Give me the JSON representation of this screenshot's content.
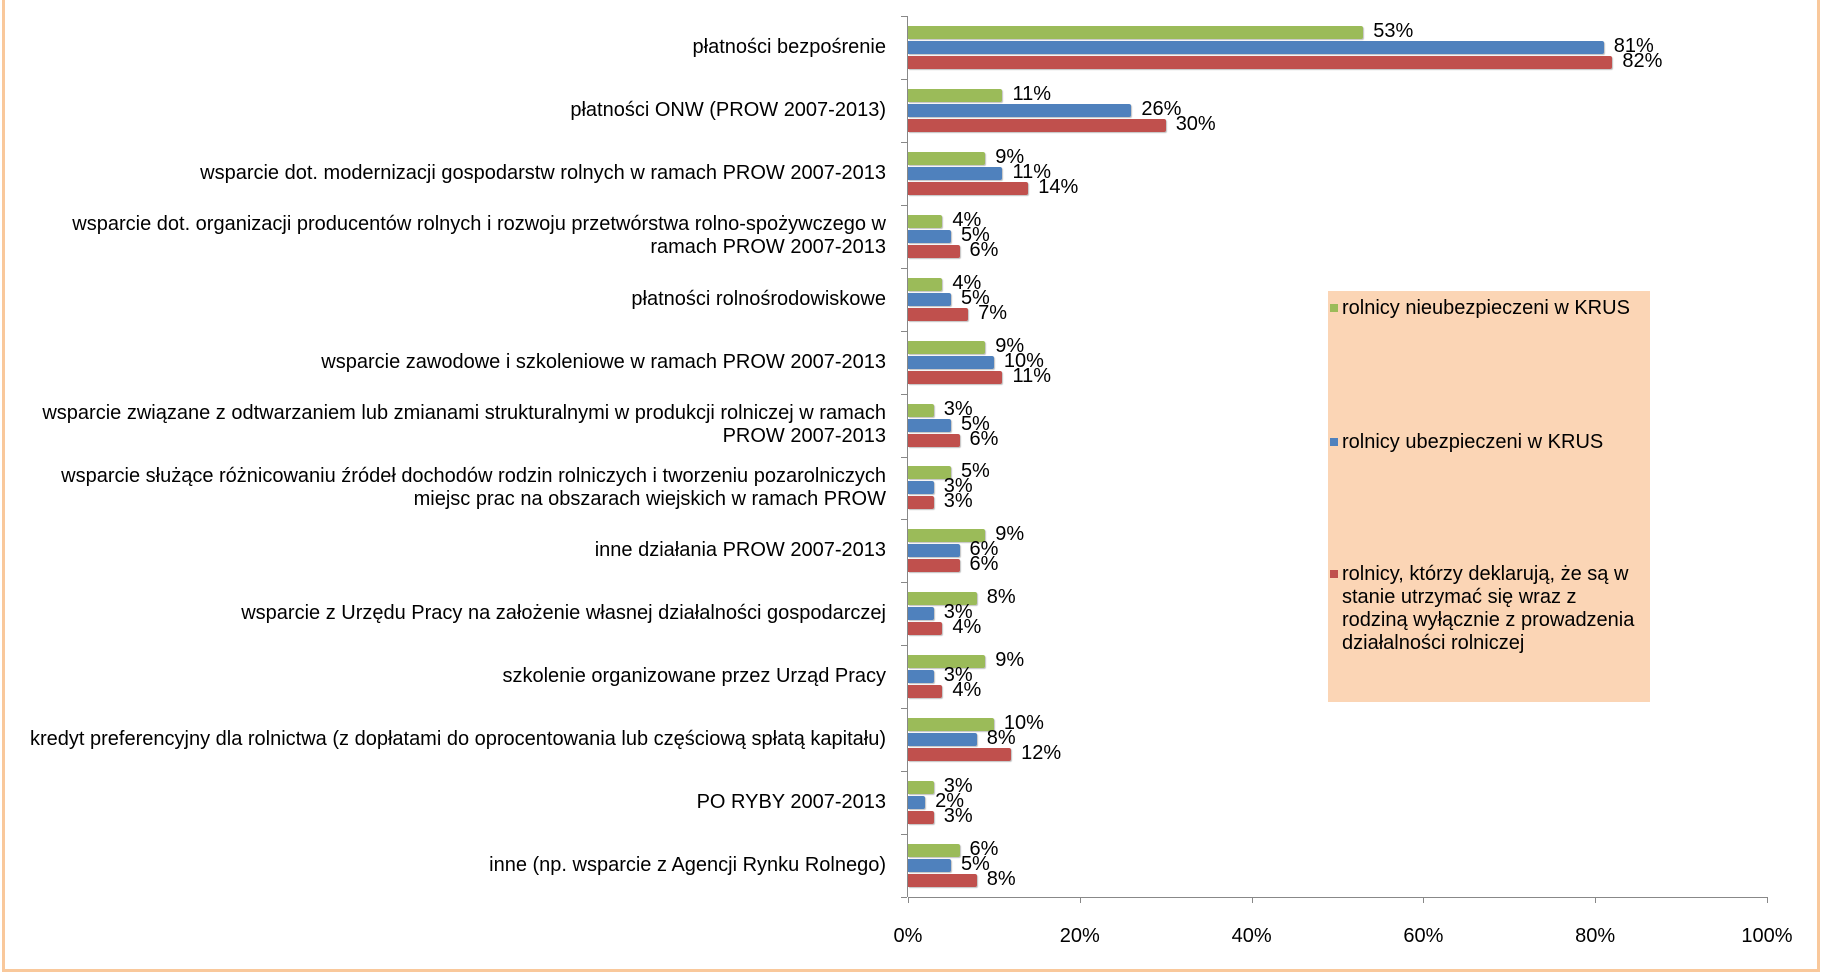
{
  "chart_data": {
    "type": "bar",
    "orientation": "horizontal",
    "categories": [
      "płatności bezpośrenie",
      "płatności ONW (PROW 2007-2013)",
      "wsparcie dot. modernizacji gospodarstw rolnych w ramach PROW 2007-2013",
      "wsparcie dot. organizacji producentów rolnych i rozwoju przetwórstwa rolno-spożywczego w ramach PROW 2007-2013",
      "płatności rolnośrodowiskowe",
      "wsparcie zawodowe i szkoleniowe w ramach PROW 2007-2013",
      "wsparcie związane z odtwarzaniem lub zmianami strukturalnymi w produkcji rolniczej w ramach PROW 2007-2013",
      "wsparcie służące różnicowaniu źródeł dochodów rodzin rolniczych i tworzeniu pozarolniczych miejsc prac na obszarach wiejskich w ramach PROW",
      "inne działania PROW 2007-2013",
      "wsparcie z Urzędu Pracy na założenie własnej działalności gospodarczej",
      "szkolenie organizowane przez Urząd Pracy",
      "kredyt preferencyjny dla rolnictwa (z dopłatami do oprocentowania lub częściową spłatą kapitału)",
      "PO RYBY 2007-2013",
      "inne (np. wsparcie z Agencji Rynku Rolnego)"
    ],
    "series": [
      {
        "name": "rolnicy nieubezpieczeni w KRUS",
        "color": "#9bbb59",
        "values": [
          53,
          11,
          9,
          4,
          4,
          9,
          3,
          5,
          9,
          8,
          9,
          10,
          3,
          6
        ],
        "value_labels": [
          "53%",
          "11%",
          "9%",
          "4%",
          "4%",
          "9%",
          "3%",
          "5%",
          "9%",
          "8%",
          "9%",
          "10%",
          "3%",
          "6%"
        ]
      },
      {
        "name": "rolnicy ubezpieczeni w KRUS",
        "color": "#4f81bd",
        "values": [
          81,
          26,
          11,
          5,
          5,
          10,
          5,
          3,
          6,
          3,
          3,
          8,
          2,
          5
        ],
        "value_labels": [
          "81%",
          "26%",
          "11%",
          "5%",
          "5%",
          "10%",
          "5%",
          "3%",
          "6%",
          "3%",
          "3%",
          "8%",
          "2%",
          "5%"
        ]
      },
      {
        "name": "rolnicy, którzy deklarują, że są w stanie utrzymać się wraz z rodziną wyłącznie z prowadzenia działalności rolniczej",
        "color": "#c0504d",
        "values": [
          82,
          30,
          14,
          6,
          7,
          11,
          6,
          3,
          6,
          4,
          4,
          12,
          3,
          8
        ],
        "value_labels": [
          "82%",
          "30%",
          "14%",
          "6%",
          "7%",
          "11%",
          "6%",
          "3%",
          "6%",
          "4%",
          "4%",
          "12%",
          "3%",
          "8%"
        ]
      }
    ],
    "xlim": [
      0,
      100
    ],
    "xticks": [
      {
        "value": 0,
        "label": "0%"
      },
      {
        "value": 20,
        "label": "20%"
      },
      {
        "value": 40,
        "label": "40%"
      },
      {
        "value": 60,
        "label": "60%"
      },
      {
        "value": 80,
        "label": "80%"
      },
      {
        "value": 100,
        "label": "100%"
      }
    ],
    "grid": false,
    "legend": "right"
  }
}
